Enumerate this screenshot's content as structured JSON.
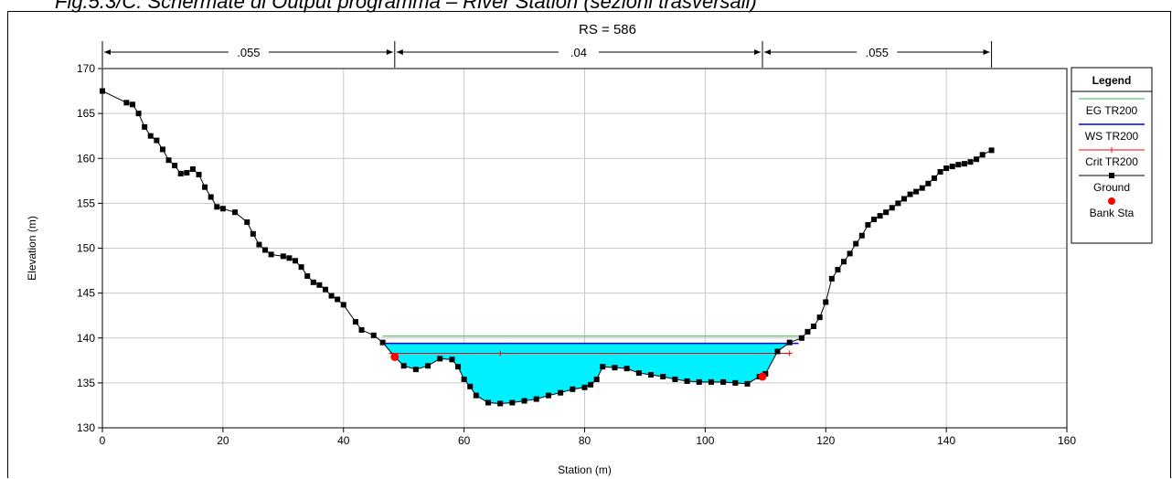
{
  "caption": "Fig.5.3/C: Schermate di Output programma – River Station (sezioni trasversali)",
  "chart_data": {
    "type": "line",
    "title": "RS = 586",
    "xlabel": "Station (m)",
    "ylabel": "Elevation (m)",
    "xlim": [
      0,
      160
    ],
    "ylim": [
      130,
      170
    ],
    "xticks": [
      0,
      20,
      40,
      60,
      80,
      100,
      120,
      140,
      160
    ],
    "yticks": [
      130,
      135,
      140,
      145,
      150,
      155,
      160,
      165,
      170
    ],
    "grid": true,
    "legend": {
      "title": "Legend",
      "placement": "right",
      "entries": [
        "EG TR200",
        "WS TR200",
        "Crit TR200",
        "Ground",
        "Bank Sta"
      ]
    },
    "manning": [
      {
        "label": ".055",
        "from": 0,
        "to": 48.5
      },
      {
        "label": ".04",
        "from": 48.5,
        "to": 109.5
      },
      {
        "label": ".055",
        "from": 109.5,
        "to": 147.5
      }
    ],
    "series": [
      {
        "name": "EG TR200",
        "color": "#3cb04a",
        "x": [
          46.5,
          116
        ],
        "y": [
          140.2,
          140.2
        ]
      },
      {
        "name": "WS TR200",
        "color": "#0000ff",
        "x": [
          46.5,
          115.5
        ],
        "y": [
          139.4,
          139.4
        ]
      },
      {
        "name": "Crit TR200",
        "color": "#ff0000",
        "x": [
          47.5,
          114
        ],
        "y": [
          138.3,
          138.3
        ],
        "markers_x": [
          66,
          114
        ]
      },
      {
        "name": "Ground",
        "color": "#000000",
        "x": [
          0,
          4,
          5,
          6,
          7,
          8,
          9,
          10,
          11,
          12,
          13,
          14,
          15,
          16,
          17,
          18,
          19,
          20,
          22,
          24,
          25,
          26,
          27,
          28,
          30,
          31,
          32,
          33,
          34,
          35,
          36,
          37,
          38,
          39,
          40,
          42,
          43,
          45,
          46.5,
          48.5,
          50,
          52,
          54,
          56,
          58,
          59,
          60,
          61,
          62,
          64,
          66,
          68,
          70,
          72,
          74,
          76,
          78,
          80,
          81,
          82,
          83,
          85,
          87,
          89,
          91,
          93,
          95,
          97,
          99,
          101,
          103,
          105,
          107,
          109,
          110,
          112,
          114,
          116,
          117,
          118,
          119,
          120,
          121,
          122,
          123,
          124,
          125,
          126,
          127,
          128,
          129,
          130,
          131,
          132,
          133,
          134,
          135,
          136,
          137,
          138,
          139,
          140,
          141,
          142,
          143,
          144,
          145,
          146,
          147.5
        ],
        "y": [
          167.5,
          166.2,
          166,
          165,
          163.5,
          162.5,
          162,
          161,
          159.8,
          159.2,
          158.3,
          158.4,
          158.8,
          158.2,
          156.8,
          155.7,
          154.6,
          154.4,
          154,
          152.9,
          151.6,
          150.4,
          149.8,
          149.3,
          149.1,
          148.9,
          148.6,
          147.9,
          146.9,
          146.2,
          145.9,
          145.4,
          144.7,
          144.3,
          143.7,
          141.8,
          140.9,
          140.3,
          139.5,
          137.9,
          136.9,
          136.5,
          136.9,
          137.7,
          137.6,
          136.8,
          135.4,
          134.6,
          133.6,
          132.8,
          132.7,
          132.8,
          133,
          133.2,
          133.6,
          133.9,
          134.3,
          134.5,
          134.8,
          135.4,
          136.8,
          136.7,
          136.6,
          136.1,
          135.9,
          135.7,
          135.4,
          135.2,
          135.1,
          135.1,
          135.1,
          135,
          134.9,
          135.7,
          136,
          138.5,
          139.5,
          140,
          140.7,
          141.3,
          142.3,
          144,
          146.6,
          147.6,
          148.5,
          149.4,
          150.5,
          151.4,
          152.6,
          153.2,
          153.6,
          154,
          154.5,
          155,
          155.5,
          156,
          156.3,
          156.7,
          157.2,
          157.8,
          158.5,
          158.9,
          159.1,
          159.3,
          159.4,
          159.6,
          159.9,
          160.4,
          160.9
        ]
      },
      {
        "name": "Bank Sta",
        "color": "#ff0000",
        "x": [
          48.5,
          109.5
        ],
        "y": [
          137.9,
          135.7
        ]
      }
    ]
  }
}
